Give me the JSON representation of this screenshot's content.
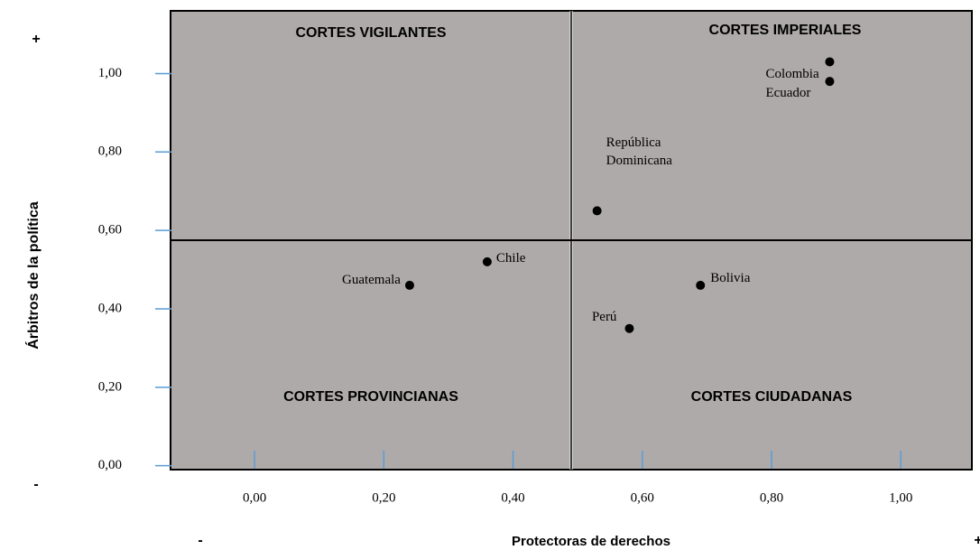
{
  "chart_data": {
    "type": "scatter",
    "x_label": "Protectoras de derechos",
    "y_label": "Árbitros de la política",
    "y_plus": "+",
    "y_minus": "-",
    "x_minus": "-",
    "x_plus": "+",
    "quadrants": [
      "CORTES VIGILANTES",
      "CORTES IMPERIALES",
      "CORTES PROVINCIANAS",
      "CORTES CIUDADANAS"
    ],
    "labels": [
      "Colombia",
      "Ecuador",
      "República Dominicana",
      "Chile",
      "Guatemala",
      "Bolivia",
      "Perú"
    ],
    "x": [
      0.89,
      0.89,
      0.53,
      0.36,
      0.24,
      0.69,
      0.58
    ],
    "y": [
      1.03,
      0.98,
      0.65,
      0.52,
      0.46,
      0.46,
      0.35
    ],
    "color": "#000000",
    "xlim": [
      -0.13,
      1.11
    ],
    "ylim": [
      -0.01,
      1.16
    ],
    "xticks": [
      {
        "value": 0,
        "label": "0,00"
      },
      {
        "value": 0.2,
        "label": "0,20"
      },
      {
        "value": 0.4,
        "label": "0,40"
      },
      {
        "value": 0.6,
        "label": "0,60"
      },
      {
        "value": 0.8,
        "label": "0,80"
      },
      {
        "value": 1,
        "label": "1,00"
      }
    ],
    "yticks": [
      {
        "value": 0,
        "label": "0,00"
      },
      {
        "value": 0.2,
        "label": "0,20"
      },
      {
        "value": 0.4,
        "label": "0,40"
      },
      {
        "value": 0.6,
        "label": "0,60"
      },
      {
        "value": 0.8,
        "label": "0,80"
      },
      {
        "value": 1,
        "label": "1,00"
      }
    ]
  }
}
